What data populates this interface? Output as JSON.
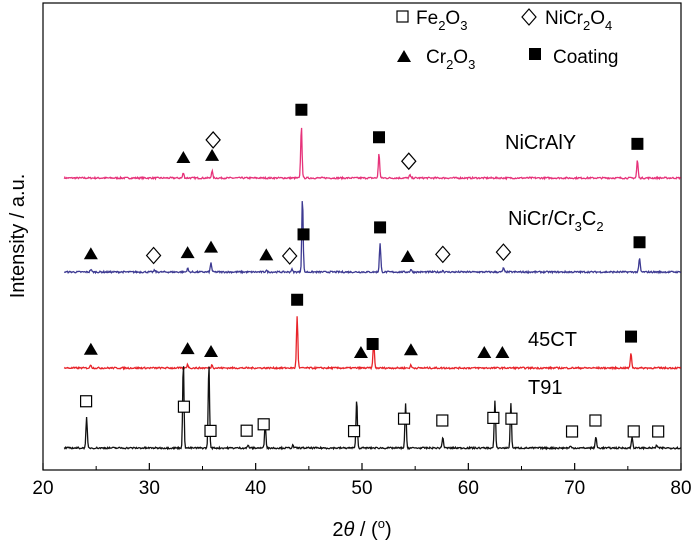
{
  "chart_data": {
    "type": "line",
    "title": "",
    "xlabel": "2θ / (°)",
    "xlabel_parts": {
      "symbol": "2",
      "italic": "θ",
      "rest": " / (",
      "degree": "o",
      "close": ")"
    },
    "ylabel": "Intensity / a.u.",
    "xlim": [
      20,
      80
    ],
    "xticks": [
      20,
      30,
      40,
      50,
      60,
      70,
      80
    ],
    "yticks_shown": false,
    "colors": {
      "NiCrAlY": "#e6327a",
      "NiCr/Cr3C2": "#3d3a92",
      "45CT": "#e8242a",
      "T91": "#111111"
    },
    "legend": {
      "placement": "top-right",
      "entries": [
        {
          "marker": "open-square",
          "base": "Fe",
          "sub1": "2",
          "mid": "O",
          "sub2": "3"
        },
        {
          "marker": "open-diamond",
          "base": "NiCr",
          "sub1": "2",
          "mid": "O",
          "sub2": "4"
        },
        {
          "marker": "filled-triangle",
          "base": "Cr",
          "sub1": "2",
          "mid": "O",
          "sub2": "3"
        },
        {
          "marker": "filled-square",
          "text": "Coating"
        }
      ]
    },
    "series": [
      {
        "name": "NiCrAlY",
        "label": "NiCrAlY",
        "offset": 3.0,
        "peaks": [
          [
            33.2,
            0.09
          ],
          [
            35.9,
            0.13
          ],
          [
            44.3,
            0.95
          ],
          [
            51.6,
            0.45
          ],
          [
            54.5,
            0.05
          ],
          [
            75.9,
            0.33
          ]
        ],
        "markers": [
          {
            "type": "filled-triangle",
            "x": 33.2
          },
          {
            "type": "filled-triangle",
            "x": 35.9
          },
          {
            "type": "open-diamond",
            "x": 36.0,
            "above": true
          },
          {
            "type": "filled-square",
            "x": 44.3
          },
          {
            "type": "filled-square",
            "x": 51.6
          },
          {
            "type": "open-diamond",
            "x": 54.4
          },
          {
            "type": "filled-square",
            "x": 75.9
          }
        ]
      },
      {
        "name": "NiCr/Cr3C2",
        "label_parts": {
          "a": "NiCr/Cr",
          "s1": "3",
          "b": "C",
          "s2": "2"
        },
        "offset": 2.0,
        "peaks": [
          [
            24.5,
            0.05
          ],
          [
            30.5,
            0.03
          ],
          [
            33.6,
            0.07
          ],
          [
            35.8,
            0.17
          ],
          [
            41.0,
            0.03
          ],
          [
            43.4,
            0.05
          ],
          [
            44.4,
            1.35
          ],
          [
            51.7,
            0.52
          ],
          [
            54.6,
            0.05
          ],
          [
            57.6,
            0.03
          ],
          [
            63.3,
            0.07
          ],
          [
            76.1,
            0.25
          ]
        ],
        "markers": [
          {
            "type": "filled-triangle",
            "x": 24.5
          },
          {
            "type": "open-diamond",
            "x": 30.4
          },
          {
            "type": "filled-triangle",
            "x": 33.6
          },
          {
            "type": "filled-triangle",
            "x": 35.8
          },
          {
            "type": "filled-triangle",
            "x": 41.0
          },
          {
            "type": "open-diamond",
            "x": 43.2
          },
          {
            "type": "filled-square",
            "x": 44.5
          },
          {
            "type": "filled-square",
            "x": 51.7
          },
          {
            "type": "filled-triangle",
            "x": 54.3
          },
          {
            "type": "open-diamond",
            "x": 57.6
          },
          {
            "type": "open-diamond",
            "x": 63.3
          },
          {
            "type": "filled-square",
            "x": 76.1
          }
        ]
      },
      {
        "name": "45CT",
        "label": "45CT",
        "offset": 1.0,
        "peaks": [
          [
            24.5,
            0.06
          ],
          [
            33.6,
            0.07
          ],
          [
            35.9,
            0.06
          ],
          [
            43.9,
            0.95
          ],
          [
            51.1,
            0.5
          ],
          [
            54.6,
            0.05
          ],
          [
            75.3,
            0.28
          ]
        ],
        "markers": [
          {
            "type": "filled-triangle",
            "x": 24.5
          },
          {
            "type": "filled-triangle",
            "x": 33.6
          },
          {
            "type": "filled-triangle",
            "x": 35.8
          },
          {
            "type": "filled-square",
            "x": 43.9
          },
          {
            "type": "filled-triangle",
            "x": 49.9
          },
          {
            "type": "filled-square",
            "x": 51.0
          },
          {
            "type": "filled-triangle",
            "x": 54.6
          },
          {
            "type": "filled-triangle",
            "x": 61.5
          },
          {
            "type": "filled-triangle",
            "x": 63.2
          },
          {
            "type": "filled-square",
            "x": 75.3
          }
        ]
      },
      {
        "name": "T91",
        "label": "T91",
        "offset": 0.0,
        "peaks": [
          [
            24.1,
            0.55
          ],
          [
            33.2,
            1.55
          ],
          [
            35.6,
            1.55
          ],
          [
            39.3,
            0.05
          ],
          [
            40.9,
            0.45
          ],
          [
            43.5,
            0.05
          ],
          [
            49.5,
            0.9
          ],
          [
            54.1,
            0.8
          ],
          [
            57.6,
            0.2
          ],
          [
            62.5,
            0.85
          ],
          [
            64.0,
            0.8
          ],
          [
            69.6,
            0.03
          ],
          [
            72.0,
            0.2
          ],
          [
            75.4,
            0.2
          ],
          [
            77.7,
            0.05
          ]
        ],
        "markers": [
          {
            "type": "open-square",
            "x": 24.1
          },
          {
            "type": "open-square",
            "x": 33.3
          },
          {
            "type": "open-square",
            "x": 35.8
          },
          {
            "type": "open-square",
            "x": 39.2
          },
          {
            "type": "open-square",
            "x": 40.8
          },
          {
            "type": "open-square",
            "x": 49.3
          },
          {
            "type": "open-square",
            "x": 54.0
          },
          {
            "type": "open-square",
            "x": 57.6
          },
          {
            "type": "open-square",
            "x": 62.4
          },
          {
            "type": "open-square",
            "x": 64.1
          },
          {
            "type": "open-square",
            "x": 69.8
          },
          {
            "type": "open-square",
            "x": 72.0
          },
          {
            "type": "open-square",
            "x": 75.6
          },
          {
            "type": "open-square",
            "x": 77.9
          }
        ]
      }
    ]
  }
}
